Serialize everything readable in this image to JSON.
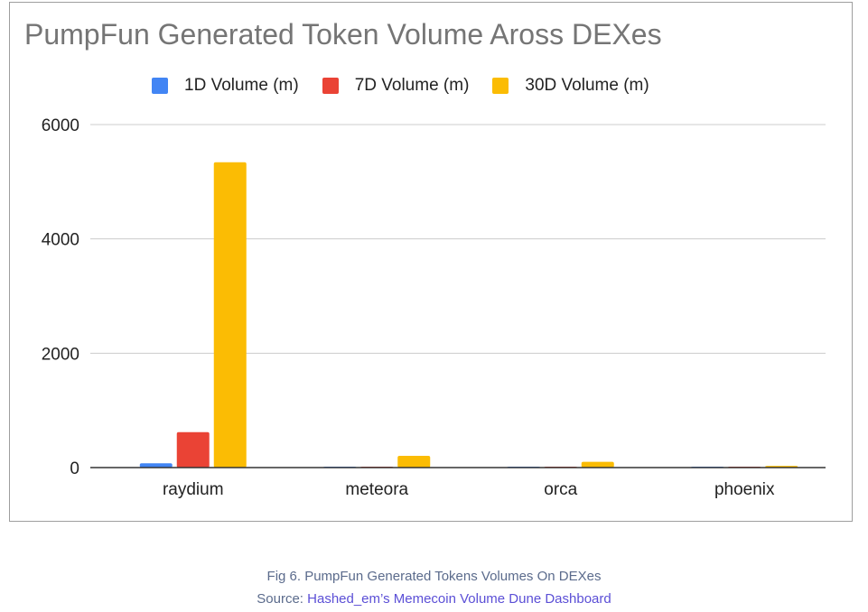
{
  "chart_data": {
    "type": "bar",
    "title": "PumpFun Generated Token Volume Aross DEXes",
    "categories": [
      "raydium",
      "meteora",
      "orca",
      "phoenix"
    ],
    "series": [
      {
        "name": "1D Volume (m)",
        "color": "#4285f4",
        "values": [
          75,
          12,
          3,
          1
        ]
      },
      {
        "name": "7D Volume (m)",
        "color": "#ea4335",
        "values": [
          620,
          15,
          10,
          3
        ]
      },
      {
        "name": "30D Volume (m)",
        "color": "#fbbc04",
        "values": [
          5340,
          205,
          100,
          30
        ]
      }
    ],
    "ylim": [
      0,
      6000
    ],
    "yticks": [
      "0",
      "2000",
      "4000",
      "6000"
    ],
    "grid": true,
    "legend_position": "top"
  },
  "caption": {
    "line1": "Fig 6. PumpFun Generated Tokens Volumes On DEXes",
    "source_prefix": "Source: ",
    "source_link": "Hashed_em’s Memecoin Volume Dune Dashboard"
  }
}
